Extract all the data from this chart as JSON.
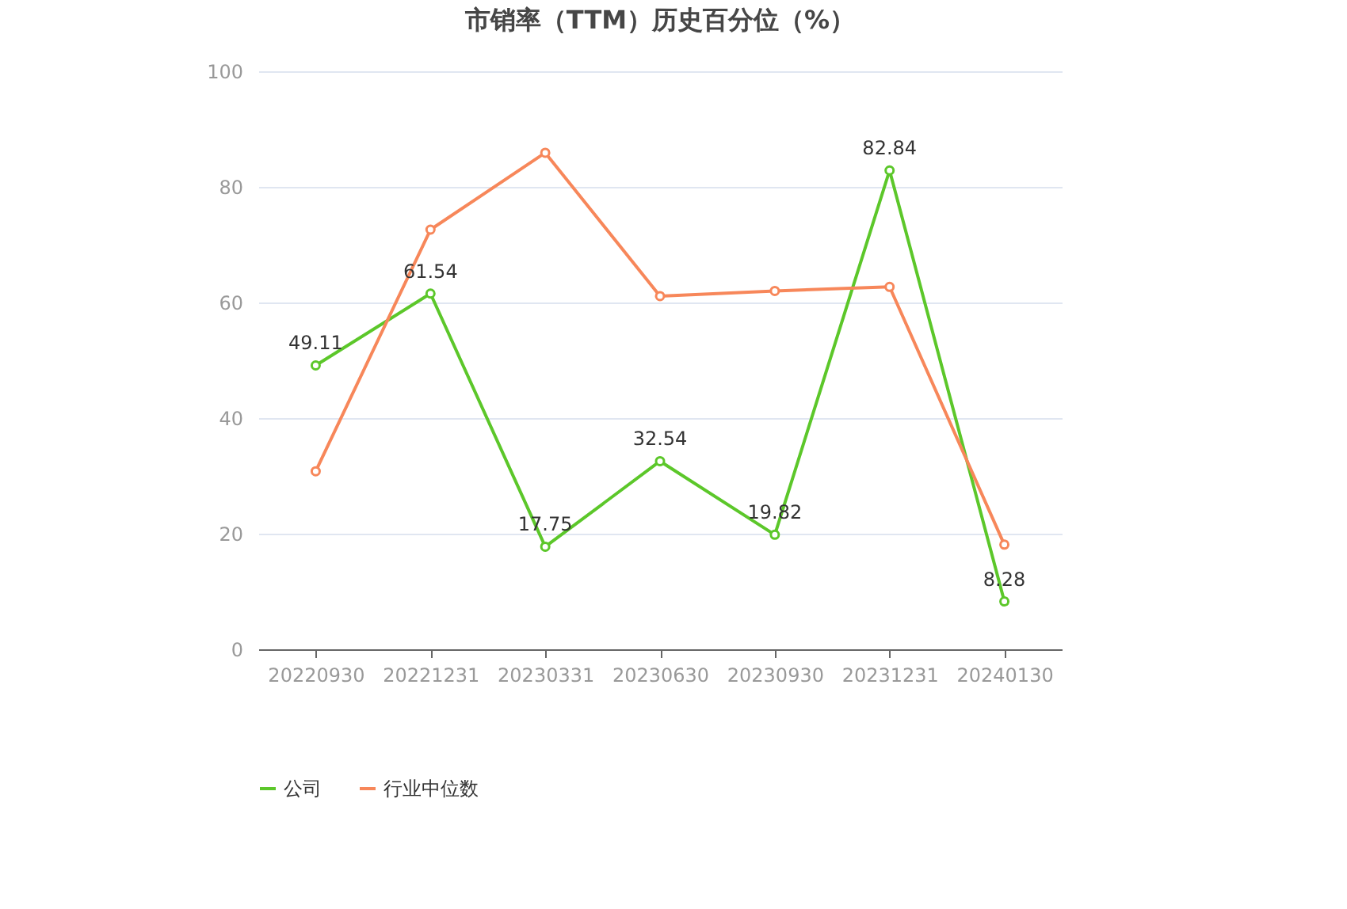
{
  "chart_data": {
    "type": "line",
    "title": "市销率（TTM）历史百分位（%）",
    "categories": [
      "20220930",
      "20221231",
      "20230331",
      "20230630",
      "20230930",
      "20231231",
      "20240130"
    ],
    "series": [
      {
        "name": "公司",
        "color": "#5cc72a",
        "values": [
          49.11,
          61.54,
          17.75,
          32.54,
          19.82,
          82.84,
          8.28
        ],
        "value_labels": [
          "49.11",
          "61.54",
          "17.75",
          "32.54",
          "19.82",
          "82.84",
          "8.28"
        ]
      },
      {
        "name": "行业中位数",
        "color": "#f7875a",
        "values": [
          30.8,
          72.6,
          85.9,
          61.1,
          62.0,
          62.7,
          18.1
        ]
      }
    ],
    "ylim": [
      0,
      100
    ],
    "yticks": [
      0,
      20,
      40,
      60,
      80,
      100
    ],
    "grid": "y",
    "legend": "bottom",
    "marker": "circle",
    "line_style": "solid"
  }
}
